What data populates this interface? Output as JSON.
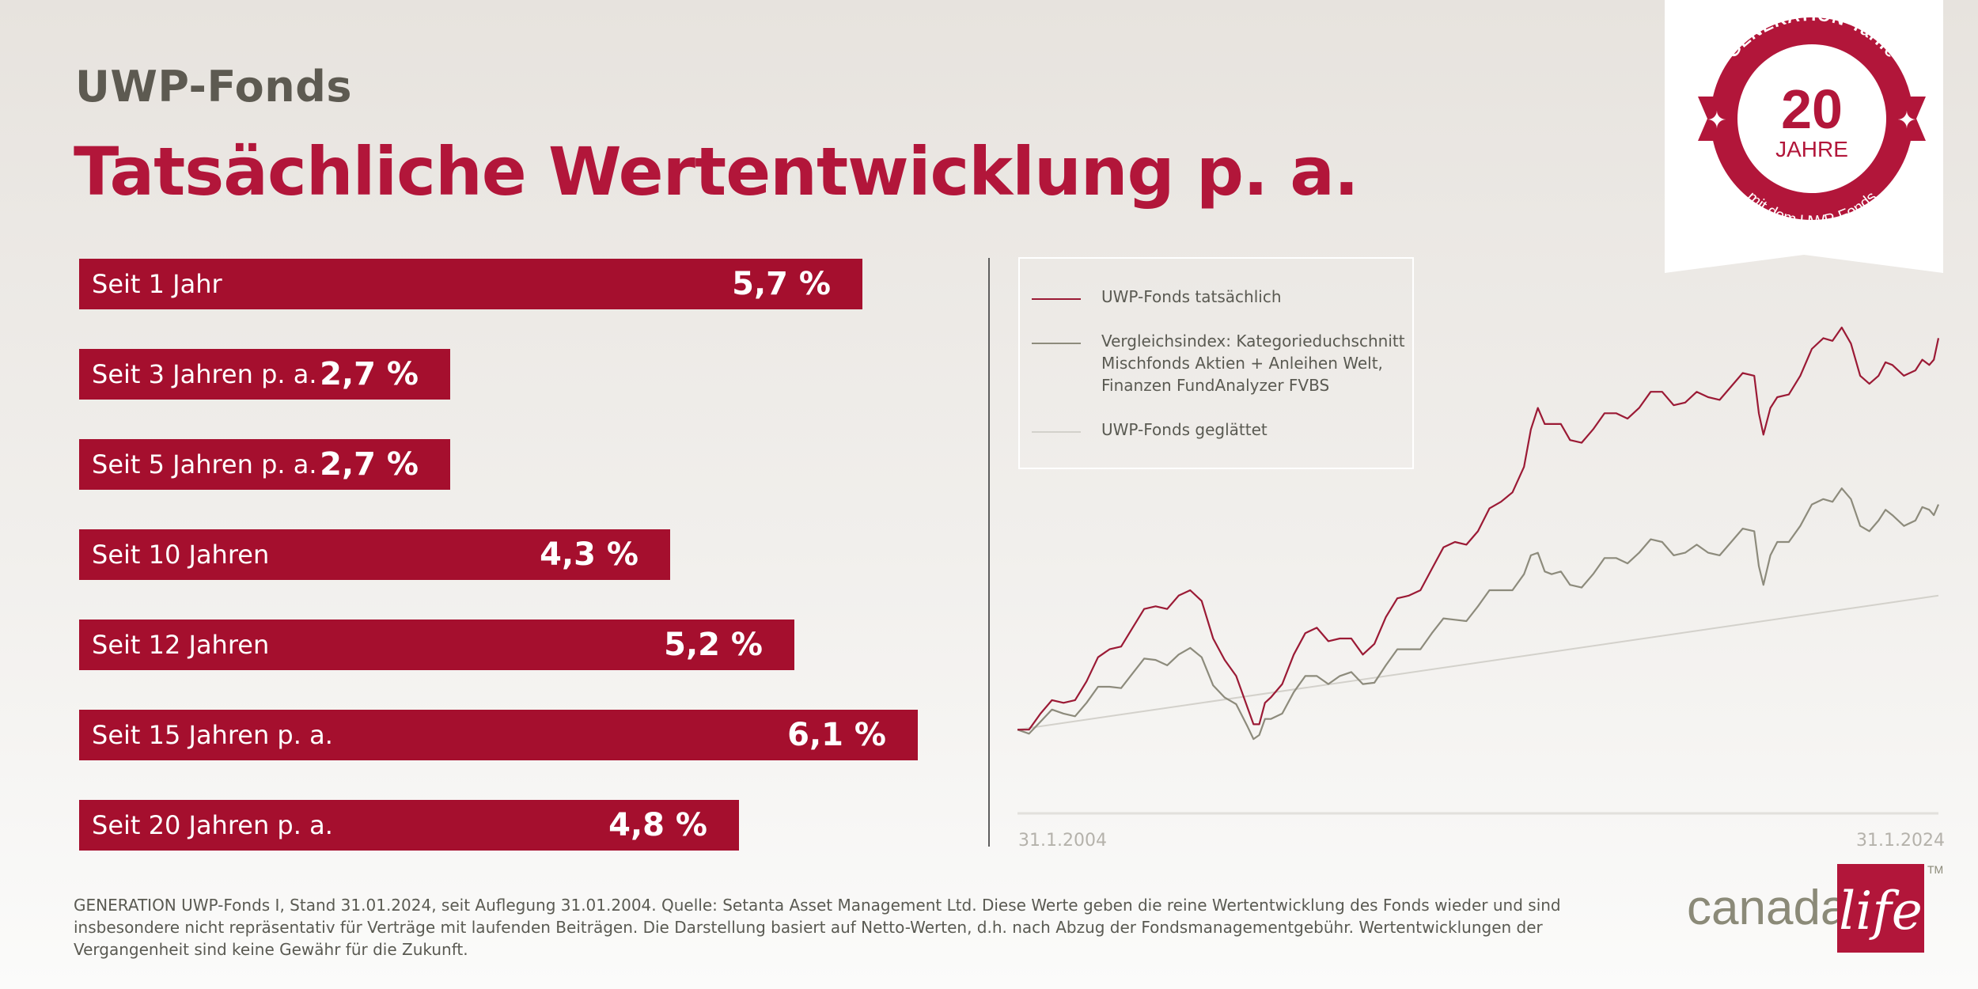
{
  "header": {
    "eyebrow": "UWP-Fonds",
    "title": "Tatsächliche Wertentwicklung p. a."
  },
  "bar_chart": {
    "type": "bar",
    "orientation": "horizontal",
    "bar_color": "#a50f2e",
    "categories": [
      "Seit 1 Jahr",
      "Seit 3 Jahren p. a.",
      "Seit 5 Jahren p. a.",
      "Seit 10 Jahren",
      "Seit 12 Jahren",
      "Seit 15 Jahren p. a.",
      "Seit 20 Jahren p. a."
    ],
    "values": [
      5.7,
      2.7,
      2.7,
      4.3,
      5.2,
      6.1,
      4.8
    ],
    "value_labels": [
      "5,7 %",
      "2,7 %",
      "2,7 %",
      "4,3 %",
      "5,2 %",
      "6,1 %",
      "4,8 %"
    ],
    "unit": "%"
  },
  "chart_data": {
    "type": "line",
    "x_start": "31.1.2004",
    "x_end": "31.1.2024",
    "x_labels": [
      "31.1.2004",
      "31.1.2024"
    ],
    "grid": false,
    "legend_position": "top-left",
    "series": [
      {
        "name": "UWP-Fonds tatsächlich",
        "color": "#9b1a35",
        "x": [
          2004.0,
          2004.5,
          2005.0,
          2005.5,
          2006.0,
          2006.5,
          2007.0,
          2007.5,
          2008.0,
          2008.5,
          2009.0,
          2009.25,
          2009.5,
          2010.0,
          2010.5,
          2011.0,
          2011.5,
          2012.0,
          2012.5,
          2013.0,
          2013.5,
          2014.0,
          2014.5,
          2015.0,
          2015.3,
          2015.6,
          2016.0,
          2016.5,
          2017.0,
          2017.5,
          2018.0,
          2018.5,
          2019.0,
          2019.5,
          2020.0,
          2020.2,
          2020.5,
          2021.0,
          2021.5,
          2021.9,
          2022.3,
          2022.7,
          2023.0,
          2023.5,
          2023.8,
          2024.0
        ],
        "y": [
          100,
          106,
          110,
          118,
          130,
          138,
          146,
          150,
          148,
          126,
          108,
          102,
          112,
          128,
          138,
          134,
          128,
          142,
          150,
          160,
          170,
          174,
          185,
          198,
          220,
          214,
          208,
          212,
          218,
          220,
          226,
          222,
          224,
          228,
          232,
          210,
          224,
          232,
          246,
          250,
          232,
          232,
          236,
          234,
          236,
          246
        ]
      },
      {
        "name": "Vergleichsindex: Kategorieduchschnitt\nMischfonds Aktien + Anleihen Welt,\nFinanzen FundAnalyzer FVBS",
        "color": "#8d8b7c",
        "x": [
          2004.0,
          2004.5,
          2005.0,
          2005.5,
          2006.0,
          2006.5,
          2007.0,
          2007.5,
          2008.0,
          2008.5,
          2009.0,
          2009.25,
          2009.5,
          2010.0,
          2010.5,
          2011.0,
          2011.5,
          2012.0,
          2012.5,
          2013.0,
          2013.5,
          2014.0,
          2014.5,
          2015.0,
          2015.3,
          2015.6,
          2016.0,
          2016.5,
          2017.0,
          2017.5,
          2018.0,
          2018.5,
          2019.0,
          2019.5,
          2020.0,
          2020.2,
          2020.5,
          2021.0,
          2021.5,
          2021.9,
          2022.3,
          2022.7,
          2023.0,
          2023.5,
          2023.8,
          2024.0
        ],
        "y": [
          100,
          103,
          106,
          110,
          116,
          121,
          126,
          128,
          127,
          112,
          101,
          98,
          104,
          114,
          120,
          120,
          117,
          124,
          130,
          136,
          141,
          146,
          152,
          158,
          166,
          158,
          154,
          158,
          164,
          166,
          170,
          166,
          166,
          170,
          174,
          154,
          170,
          176,
          186,
          190,
          176,
          178,
          180,
          178,
          182,
          184
        ]
      },
      {
        "name": "UWP-Fonds geglättet",
        "color": "#d3d1cb",
        "x": [
          2004.0,
          2024.0
        ],
        "y": [
          100,
          150
        ]
      }
    ]
  },
  "footnote": "GENERATION UWP-Fonds I, Stand 31.01.2024, seit Auflegung 31.01.2004. Quelle: Setanta Asset Management Ltd. Diese Werte geben die reine Wertentwicklung des Fonds wieder und sind insbesondere nicht repräsentativ für Verträge mit laufenden Beiträgen. Die Darstellung basiert auf Netto-Werten, d.h. nach Abzug der Fondsmanagementgebühr. Wertentwicklungen der Vergangenheit sind keine Gewähr für die Zukunft.",
  "badge": {
    "top_text": "GENERATION-Tarife",
    "number": "20",
    "unit": "JAHRE",
    "bottom_text": "mit dem UWP-Fonds",
    "color": "#b2163a"
  },
  "brand": {
    "word": "canada",
    "script": "life",
    "trademark": "TM",
    "color": "#b2163a"
  }
}
